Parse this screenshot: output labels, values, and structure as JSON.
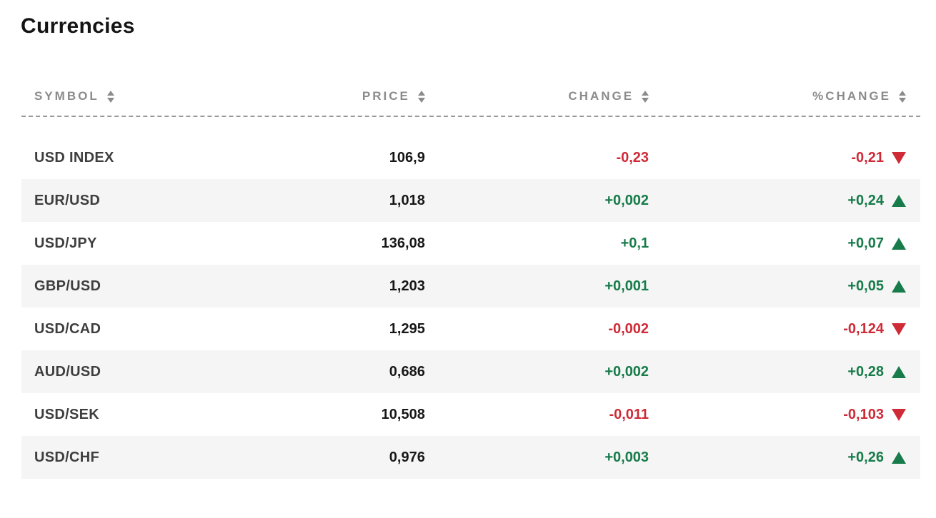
{
  "page": {
    "title": "Currencies"
  },
  "colors": {
    "up": "#177b4a",
    "down": "#ce2b37",
    "header_text": "#8b8b8b",
    "symbol_text": "#3e3e3e",
    "price_text": "#171717",
    "row_alt": "#f5f5f5",
    "divider": "#9a9a9a"
  },
  "table": {
    "columns": [
      {
        "key": "symbol",
        "label": "SYMBOL",
        "align": "left"
      },
      {
        "key": "price",
        "label": "PRICE",
        "align": "right"
      },
      {
        "key": "change",
        "label": "CHANGE",
        "align": "right"
      },
      {
        "key": "pct_change",
        "label": "%CHANGE",
        "align": "right"
      }
    ],
    "rows": [
      {
        "symbol": "USD INDEX",
        "price": "106,9",
        "change": "-0,23",
        "pct_change": "-0,21",
        "direction": "down"
      },
      {
        "symbol": "EUR/USD",
        "price": "1,018",
        "change": "+0,002",
        "pct_change": "+0,24",
        "direction": "up"
      },
      {
        "symbol": "USD/JPY",
        "price": "136,08",
        "change": "+0,1",
        "pct_change": "+0,07",
        "direction": "up"
      },
      {
        "symbol": "GBP/USD",
        "price": "1,203",
        "change": "+0,001",
        "pct_change": "+0,05",
        "direction": "up"
      },
      {
        "symbol": "USD/CAD",
        "price": "1,295",
        "change": "-0,002",
        "pct_change": "-0,124",
        "direction": "down"
      },
      {
        "symbol": "AUD/USD",
        "price": "0,686",
        "change": "+0,002",
        "pct_change": "+0,28",
        "direction": "up"
      },
      {
        "symbol": "USD/SEK",
        "price": "10,508",
        "change": "-0,011",
        "pct_change": "-0,103",
        "direction": "down"
      },
      {
        "symbol": "USD/CHF",
        "price": "0,976",
        "change": "+0,003",
        "pct_change": "+0,26",
        "direction": "up"
      }
    ]
  },
  "chart_data": {
    "type": "table",
    "title": "Currencies",
    "columns": [
      "SYMBOL",
      "PRICE",
      "CHANGE",
      "%CHANGE"
    ],
    "rows": [
      [
        "USD INDEX",
        "106,9",
        "-0,23",
        "-0,21"
      ],
      [
        "EUR/USD",
        "1,018",
        "+0,002",
        "+0,24"
      ],
      [
        "USD/JPY",
        "136,08",
        "+0,1",
        "+0,07"
      ],
      [
        "GBP/USD",
        "1,203",
        "+0,001",
        "+0,05"
      ],
      [
        "USD/CAD",
        "1,295",
        "-0,002",
        "-0,124"
      ],
      [
        "AUD/USD",
        "0,686",
        "+0,002",
        "+0,28"
      ],
      [
        "USD/SEK",
        "10,508",
        "-0,011",
        "-0,103"
      ],
      [
        "USD/CHF",
        "0,976",
        "+0,003",
        "+0,26"
      ]
    ]
  }
}
